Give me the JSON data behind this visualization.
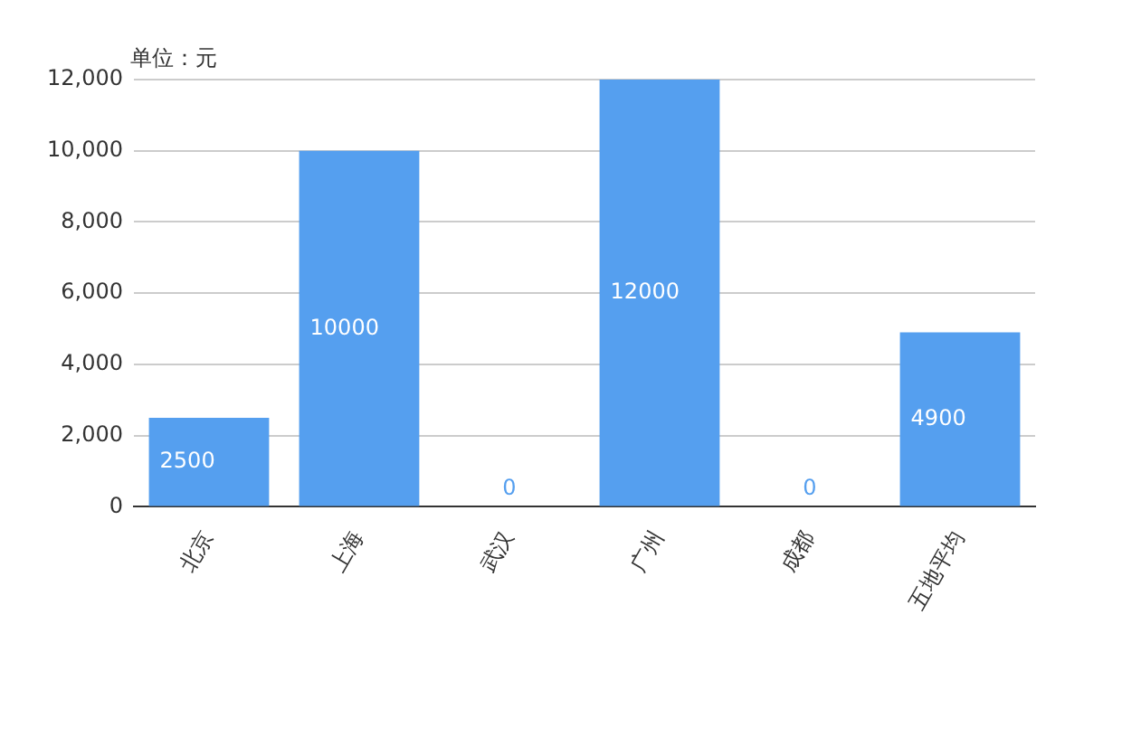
{
  "chart_data": {
    "type": "bar",
    "ylabel": "单位：元",
    "categories": [
      "北京",
      "上海",
      "武汉",
      "广州",
      "成都",
      "五地平均"
    ],
    "series": [
      {
        "color": "#559fef",
        "values": [
          2500,
          10000,
          0,
          12000,
          0,
          4900
        ]
      }
    ],
    "ylim": [
      0,
      12000
    ],
    "yticks": [
      {
        "value": 0,
        "label": "0"
      },
      {
        "value": 2000,
        "label": "2,000"
      },
      {
        "value": 4000,
        "label": "4,000"
      },
      {
        "value": 6000,
        "label": "6,000"
      },
      {
        "value": 8000,
        "label": "8,000"
      },
      {
        "value": 10000,
        "label": "10,000"
      },
      {
        "value": 12000,
        "label": "12,000"
      }
    ],
    "grid": "y",
    "data_labels": true,
    "legend": false
  }
}
